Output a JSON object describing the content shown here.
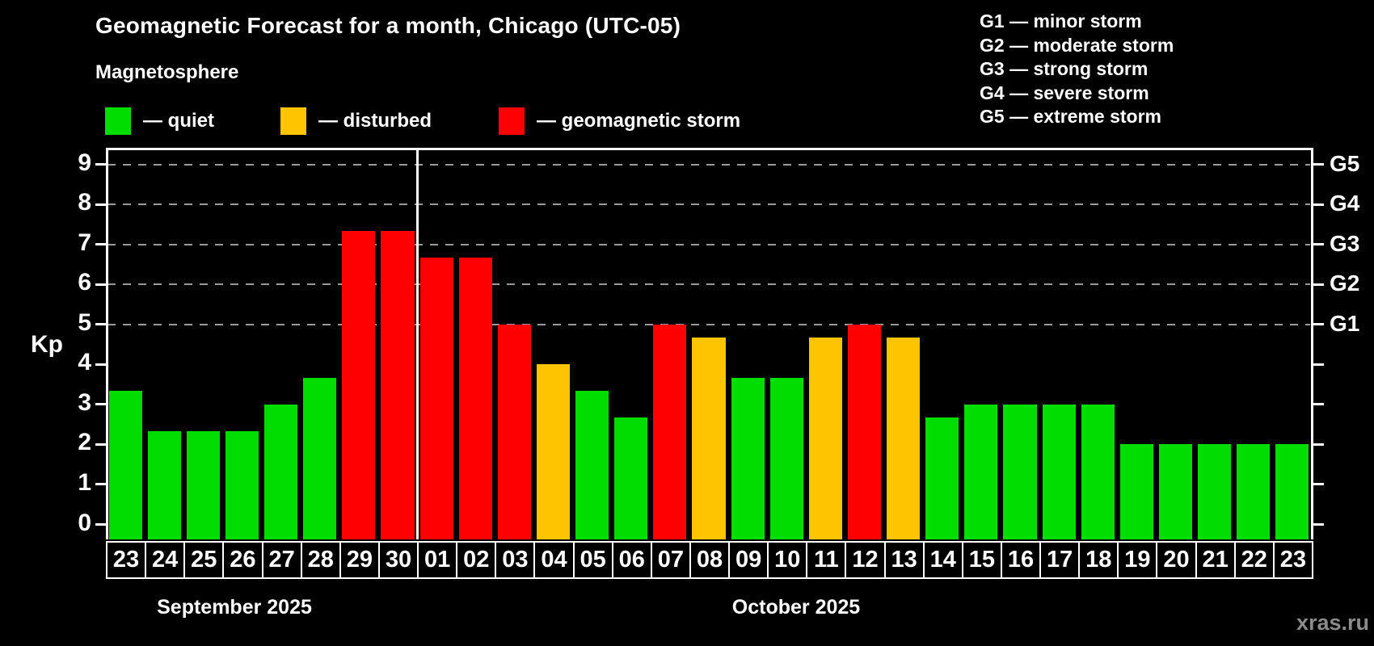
{
  "title": "Geomagnetic Forecast for a month, Chicago (UTC-05)",
  "subtitle": "Magnetosphere",
  "legend": {
    "items": [
      {
        "status": "quiet",
        "label": "— quiet"
      },
      {
        "status": "disturbed",
        "label": "— disturbed"
      },
      {
        "status": "storm",
        "label": "— geomagnetic storm"
      }
    ]
  },
  "storm_scale": [
    "G1 — minor storm",
    "G2 — moderate storm",
    "G3 — strong storm",
    "G4 — severe storm",
    "G5 — extreme storm"
  ],
  "colors": {
    "quiet": "#00de00",
    "disturbed": "#ffc400",
    "storm": "#fe0000",
    "grid": "#9a9a9a",
    "axis": "#ffffff",
    "watermark": "#8b8b8b",
    "background": "#000000"
  },
  "axis": {
    "y_label": "Kp",
    "y_ticks": [
      0,
      1,
      2,
      3,
      4,
      5,
      6,
      7,
      8,
      9
    ],
    "gridline_levels": [
      5,
      6,
      7,
      8,
      9
    ],
    "right_labels": [
      {
        "text": "G5",
        "kp": 9
      },
      {
        "text": "G4",
        "kp": 8
      },
      {
        "text": "G3",
        "kp": 7
      },
      {
        "text": "G2",
        "kp": 6
      },
      {
        "text": "G1",
        "kp": 5
      }
    ]
  },
  "months": [
    {
      "name": "September 2025",
      "days": 8
    },
    {
      "name": "October 2025",
      "days": 23
    }
  ],
  "watermark": "xras.ru",
  "chart_data": {
    "type": "bar",
    "title": "Geomagnetic Forecast for a month, Chicago (UTC-05)",
    "ylabel": "Kp",
    "ylim": [
      0,
      9.4
    ],
    "grid": "dashed horizontal lines at Kp 5,6,7,8,9 (G1–G5)",
    "legend_position": "top-left",
    "x": [
      "23",
      "24",
      "25",
      "26",
      "27",
      "28",
      "29",
      "30",
      "01",
      "02",
      "03",
      "04",
      "05",
      "06",
      "07",
      "08",
      "09",
      "10",
      "11",
      "12",
      "13",
      "14",
      "15",
      "16",
      "17",
      "18",
      "19",
      "20",
      "21",
      "22",
      "23"
    ],
    "month_spans": [
      {
        "month": "September 2025",
        "bars": 8
      },
      {
        "month": "October 2025",
        "bars": 23
      }
    ],
    "series": [
      {
        "name": "Kp forecast",
        "values": [
          3.33,
          2.33,
          2.33,
          2.33,
          3.0,
          3.67,
          7.33,
          7.33,
          6.67,
          6.67,
          5.0,
          4.0,
          3.33,
          2.67,
          5.0,
          4.67,
          3.67,
          3.67,
          4.67,
          5.0,
          4.67,
          2.67,
          3.0,
          3.0,
          3.0,
          3.0,
          2.0,
          2.0,
          2.0,
          2.0,
          2.0
        ]
      }
    ],
    "statuses": [
      "quiet",
      "quiet",
      "quiet",
      "quiet",
      "quiet",
      "quiet",
      "storm",
      "storm",
      "storm",
      "storm",
      "storm",
      "disturbed",
      "quiet",
      "quiet",
      "storm",
      "disturbed",
      "quiet",
      "quiet",
      "disturbed",
      "storm",
      "disturbed",
      "quiet",
      "quiet",
      "quiet",
      "quiet",
      "quiet",
      "quiet",
      "quiet",
      "quiet",
      "quiet",
      "quiet"
    ]
  }
}
